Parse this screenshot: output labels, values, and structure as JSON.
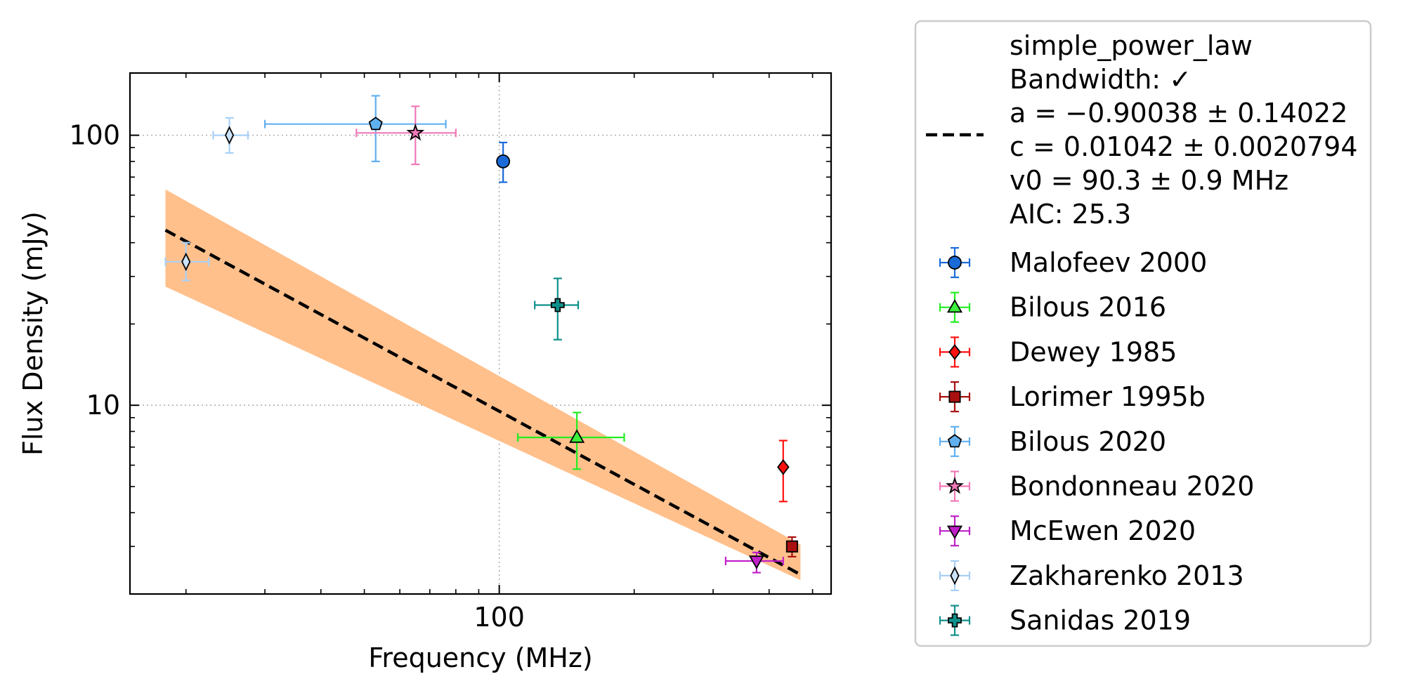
{
  "chart_data": {
    "type": "scatter",
    "xlabel": "Frequency (MHz)",
    "ylabel": "Flux Density (mJy)",
    "xscale": "log",
    "yscale": "log",
    "xlim": [
      15,
      550
    ],
    "ylim": [
      2.0,
      170
    ],
    "x_ticks": [
      {
        "value": 100,
        "label": "100"
      }
    ],
    "y_ticks": [
      {
        "value": 10,
        "label": "10"
      },
      {
        "value": 100,
        "label": "100"
      }
    ],
    "grid": "major, dotted",
    "legend_position": "outside-right",
    "fit": {
      "model": "simple_power_law",
      "label_lines": [
        "simple_power_law",
        "Bandwidth: ✓",
        "a = −0.90038 ± 0.14022",
        "c = 0.01042 ± 0.0020794",
        "v0 = 90.3 ± 0.9 MHz",
        "AIC: 25.3"
      ],
      "a": -0.90038,
      "c": 0.01042,
      "v0": 90.3,
      "line_color": "#000000",
      "band_color": "#ffc08c",
      "x_range": [
        18,
        470
      ],
      "band_lower_at_start": 27.5,
      "band_upper_at_start": 63,
      "band_lower_at_end": 2.25,
      "band_upper_at_end": 3.05
    },
    "series": [
      {
        "name": "Malofeev 2000",
        "marker": "circle",
        "color": "#1a6bd8",
        "ecolor": "#1a6bd8",
        "points": [
          {
            "x": 102,
            "y": 80,
            "xerr": [
              0,
              0
            ],
            "yerr": [
              67,
              94
            ]
          }
        ]
      },
      {
        "name": "Bilous 2016",
        "marker": "triangle-up",
        "color": "#3cf03c",
        "ecolor": "#22ee22",
        "points": [
          {
            "x": 149,
            "y": 7.6,
            "xerr": [
              110,
              190
            ],
            "yerr": [
              5.8,
              9.4
            ]
          }
        ]
      },
      {
        "name": "Dewey 1985",
        "marker": "diamond",
        "color": "#ff1010",
        "ecolor": "#ff1010",
        "points": [
          {
            "x": 430,
            "y": 5.9,
            "xerr": [
              0,
              0
            ],
            "yerr": [
              4.4,
              7.4
            ]
          }
        ]
      },
      {
        "name": "Lorimer 1995b",
        "marker": "square",
        "color": "#aa1010",
        "ecolor": "#aa1010",
        "points": [
          {
            "x": 450,
            "y": 3.0,
            "xerr": [
              0,
              0
            ],
            "yerr": [
              2.75,
              3.25
            ]
          }
        ]
      },
      {
        "name": "Bilous 2020",
        "marker": "pentagon",
        "color": "#60b0f0",
        "ecolor": "#60b0f0",
        "points": [
          {
            "x": 53,
            "y": 110,
            "xerr": [
              30,
              76
            ],
            "yerr": [
              80,
              140
            ]
          }
        ]
      },
      {
        "name": "Bondonneau 2020",
        "marker": "star",
        "color": "#f078b8",
        "ecolor": "#f078b8",
        "points": [
          {
            "x": 65,
            "y": 102,
            "xerr": [
              48,
              80
            ],
            "yerr": [
              78,
              128
            ]
          }
        ]
      },
      {
        "name": "McEwen 2020",
        "marker": "triangle-down",
        "color": "#c020c8",
        "ecolor": "#c020c8",
        "points": [
          {
            "x": 375,
            "y": 2.65,
            "xerr": [
              320,
              430
            ],
            "yerr": [
              2.4,
              2.85
            ]
          }
        ]
      },
      {
        "name": "Zakharenko 2013",
        "marker": "thin-diamond",
        "color": "#cce4fa",
        "ecolor": "#a8d0f8",
        "points": [
          {
            "x": 25,
            "y": 100,
            "xerr": [
              23,
              27.5
            ],
            "yerr": [
              86,
              116
            ]
          },
          {
            "x": 20,
            "y": 34,
            "xerr": [
              18,
              22.5
            ],
            "yerr": [
              29,
              40
            ]
          }
        ]
      },
      {
        "name": "Sanidas 2019",
        "marker": "plus",
        "color": "#10908a",
        "ecolor": "#10908a",
        "points": [
          {
            "x": 135,
            "y": 23.5,
            "xerr": [
              120,
              150
            ],
            "yerr": [
              17.5,
              29.5
            ]
          }
        ]
      }
    ]
  }
}
